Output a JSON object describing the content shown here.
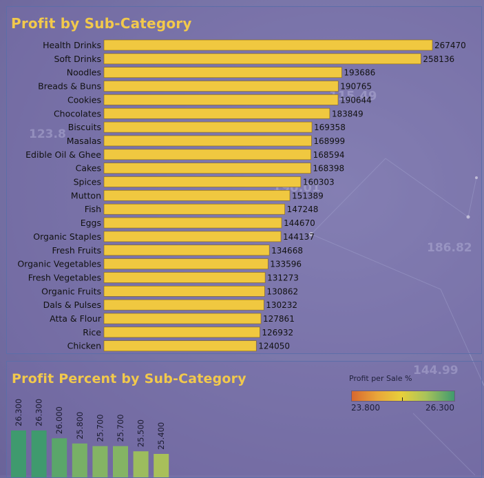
{
  "chart_data": [
    {
      "type": "bar",
      "orientation": "horizontal",
      "title": "Profit by Sub-Category",
      "categories": [
        "Health Drinks",
        "Soft Drinks",
        "Noodles",
        "Breads & Buns",
        "Cookies",
        "Chocolates",
        "Biscuits",
        "Masalas",
        "Edible Oil & Ghee",
        "Cakes",
        "Spices",
        "Mutton",
        "Fish",
        "Eggs",
        "Organic Staples",
        "Fresh Fruits",
        "Organic Vegetables",
        "Fresh Vegetables",
        "Organic Fruits",
        "Dals & Pulses",
        "Atta & Flour",
        "Rice",
        "Chicken"
      ],
      "values": [
        267470,
        258136,
        193686,
        190765,
        190644,
        183849,
        169358,
        168999,
        168594,
        168398,
        160303,
        151389,
        147248,
        144670,
        144137,
        134668,
        133596,
        131273,
        130862,
        130232,
        127861,
        126932,
        124050
      ],
      "bar_color": "#f0c840",
      "data_labels": true
    },
    {
      "type": "bar",
      "orientation": "vertical",
      "title": "Profit Percent by Sub-Category",
      "values": [
        26.3,
        26.3,
        26.0,
        25.8,
        25.7,
        25.7,
        25.5,
        25.4
      ],
      "value_labels": [
        "26.300",
        "26.300",
        "26.000",
        "25.800",
        "25.700",
        "25.700",
        "25.500",
        "25.400"
      ],
      "colors": [
        "#3f9a6e",
        "#3f9a6e",
        "#5aa66a",
        "#78b066",
        "#84b464",
        "#84b464",
        "#9cbc5e",
        "#a8c05a"
      ],
      "legend": {
        "title": "Profit per Sale %",
        "min_label": "23.800",
        "max_label": "26.300",
        "position": "top-right"
      }
    }
  ],
  "background": {
    "floating_numbers": [
      "115.49",
      "123.8",
      "190.01",
      "186.82",
      "144.99"
    ]
  }
}
